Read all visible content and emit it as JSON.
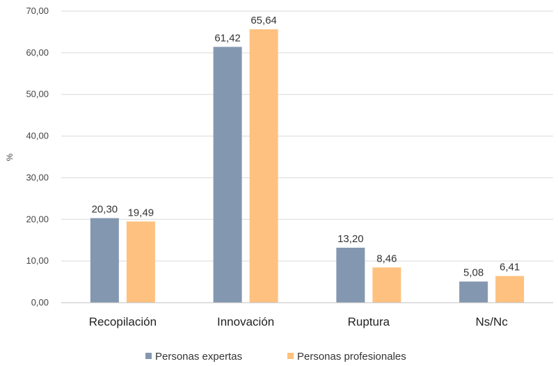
{
  "chart_data": {
    "type": "bar",
    "title": "",
    "xlabel": "",
    "ylabel": "%",
    "ylim": [
      0,
      70
    ],
    "ytick_step": 10,
    "ytick_labels": [
      "0,00",
      "10,00",
      "20,00",
      "30,00",
      "40,00",
      "50,00",
      "60,00",
      "70,00"
    ],
    "grid": true,
    "legend_position": "bottom",
    "categories": [
      "Recopilación",
      "Innovación",
      "Ruptura",
      "Ns/Nc"
    ],
    "series": [
      {
        "name": "Personas expertas",
        "color": "#8497B0",
        "values": [
          20.3,
          61.42,
          13.2,
          5.08
        ],
        "labels": [
          "20,30",
          "61,42",
          "13,20",
          "5,08"
        ]
      },
      {
        "name": "Personas profesionales",
        "color": "#FFC17F",
        "values": [
          19.49,
          65.64,
          8.46,
          6.41
        ],
        "labels": [
          "19,49",
          "65,64",
          "8,46",
          "6,41"
        ]
      }
    ]
  }
}
